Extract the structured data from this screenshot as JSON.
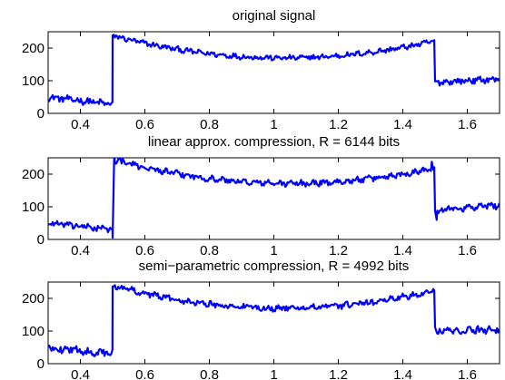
{
  "chart_data": [
    {
      "type": "line",
      "title": "original signal",
      "xlim": [
        0.3,
        1.7
      ],
      "ylim": [
        0,
        250
      ],
      "xticks": [
        "0.4",
        "0.6",
        "0.8",
        "1",
        "1.2",
        "1.4",
        "1.6"
      ],
      "xtick_values": [
        0.4,
        0.6,
        0.8,
        1.0,
        1.2,
        1.4,
        1.6
      ],
      "yticks": [
        "0",
        "100",
        "200"
      ],
      "ytick_values": [
        0,
        100,
        200
      ],
      "grid": false,
      "series_color": "#0000ff",
      "segments": [
        {
          "x_start": 0.3,
          "x_end": 0.5,
          "level_start": 50,
          "level_end": 28,
          "noise": 9
        },
        {
          "x_start": 0.5,
          "x_end": 1.5,
          "level_start": 238,
          "level_mid": 170,
          "level_end": 222,
          "noise": 7
        },
        {
          "x_start": 1.5,
          "x_end": 1.7,
          "level_start": 95,
          "level_end": 105,
          "noise": 8
        }
      ]
    },
    {
      "type": "line",
      "title": "linear approx. compression, R = 6144 bits",
      "xlim": [
        0.3,
        1.7
      ],
      "ylim": [
        0,
        250
      ],
      "xticks": [
        "0.4",
        "0.6",
        "0.8",
        "1",
        "1.2",
        "1.4",
        "1.6"
      ],
      "xtick_values": [
        0.4,
        0.6,
        0.8,
        1.0,
        1.2,
        1.4,
        1.6
      ],
      "yticks": [
        "0",
        "100",
        "200"
      ],
      "ytick_values": [
        0,
        100,
        200
      ],
      "grid": false,
      "series_color": "#0000ff",
      "segments": [
        {
          "x_start": 0.3,
          "x_end": 0.5,
          "level_start": 50,
          "level_end": 30,
          "noise": 9
        },
        {
          "x_start": 0.5,
          "x_end": 1.5,
          "level_start": 245,
          "level_mid": 172,
          "level_end": 220,
          "noise": 8
        },
        {
          "x_start": 1.5,
          "x_end": 1.7,
          "level_start": 90,
          "level_end": 105,
          "noise": 9
        }
      ],
      "spikes": [
        {
          "x": 0.5,
          "y": 5
        },
        {
          "x": 0.505,
          "y": 265
        },
        {
          "x": 1.49,
          "y": 238
        },
        {
          "x": 1.505,
          "y": 60
        }
      ]
    },
    {
      "type": "line",
      "title": "semi−parametric compression, R = 4992 bits",
      "xlim": [
        0.3,
        1.7
      ],
      "ylim": [
        0,
        250
      ],
      "xticks": [
        "0.4",
        "0.6",
        "0.8",
        "1",
        "1.2",
        "1.4",
        "1.6"
      ],
      "xtick_values": [
        0.4,
        0.6,
        0.8,
        1.0,
        1.2,
        1.4,
        1.6
      ],
      "yticks": [
        "0",
        "100",
        "200"
      ],
      "ytick_values": [
        0,
        100,
        200
      ],
      "grid": false,
      "series_color": "#0000ff",
      "segments": [
        {
          "x_start": 0.3,
          "x_end": 0.5,
          "level_start": 50,
          "level_end": 30,
          "noise": 10
        },
        {
          "x_start": 0.5,
          "x_end": 1.5,
          "level_start": 240,
          "level_mid": 170,
          "level_end": 225,
          "noise": 8
        },
        {
          "x_start": 1.5,
          "x_end": 1.7,
          "level_start": 100,
          "level_end": 105,
          "noise": 10
        }
      ]
    }
  ]
}
